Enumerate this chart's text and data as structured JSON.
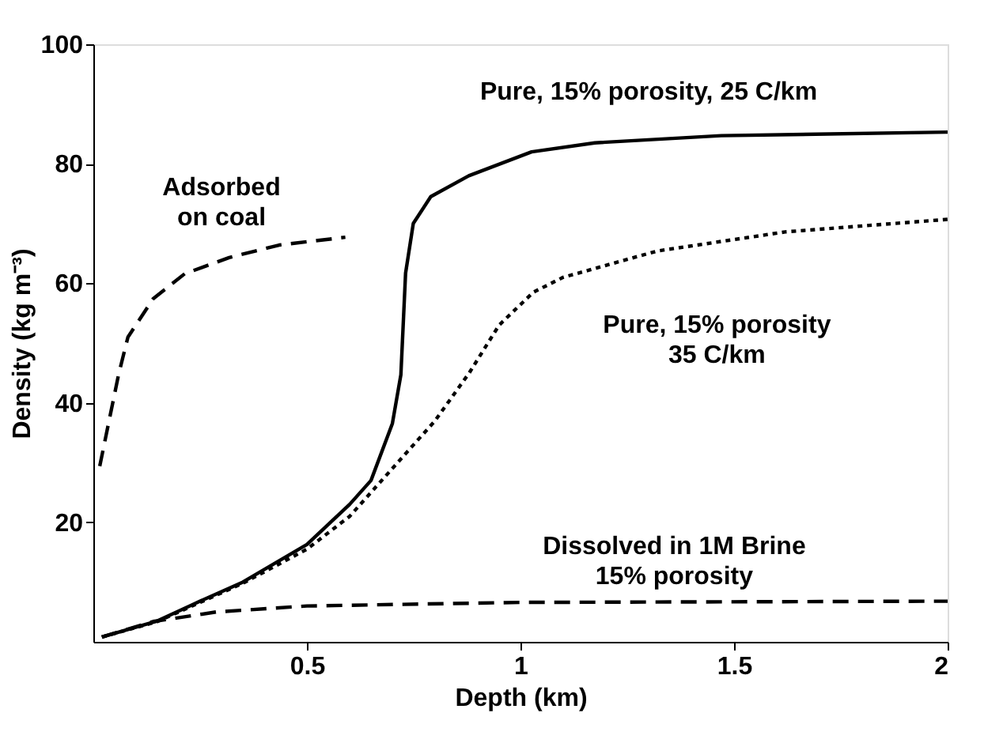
{
  "chart_data": {
    "type": "line",
    "xlabel": "Depth (km)",
    "ylabel": "Density (kg m⁻³)",
    "xlim": [
      0,
      2
    ],
    "ylim": [
      0,
      100
    ],
    "xticks": [
      0.5,
      1,
      1.5,
      2
    ],
    "yticks": [
      20,
      40,
      60,
      80,
      100
    ],
    "grid": false,
    "marker": "none",
    "series": [
      {
        "name": "Pure, 15% porosity, 25 C/km",
        "color": "#000000",
        "line_style": "solid",
        "x": [
          0.02,
          0.15,
          0.25,
          0.35,
          0.5,
          0.6,
          0.65,
          0.7,
          0.72,
          0.731,
          0.749,
          0.79,
          0.879,
          1.026,
          1.174,
          1.47,
          2.0
        ],
        "values": [
          0.8,
          3.5,
          6.8,
          10,
          16.3,
          23,
          27,
          36.5,
          44.7,
          61.7,
          70,
          74.5,
          78,
          82,
          83.5,
          84.7,
          85.3
        ]
      },
      {
        "name": "Pure, 15% porosity\n35 C/km",
        "color": "#000000",
        "line_style": "dotted",
        "x": [
          0.02,
          0.15,
          0.25,
          0.35,
          0.5,
          0.6,
          0.7,
          0.8,
          0.88,
          0.95,
          1.03,
          1.1,
          1.32,
          1.62,
          2.0
        ],
        "values": [
          0.8,
          3.4,
          6.6,
          9.8,
          15.5,
          21,
          29,
          37,
          45,
          53,
          58.5,
          61,
          65.4,
          68.6,
          70.7
        ]
      },
      {
        "name": "Adsorbed\non coal",
        "color": "#000000",
        "line_style": "dashed",
        "x": [
          0.015,
          0.059,
          0.081,
          0.14,
          0.214,
          0.318,
          0.435,
          0.59
        ],
        "values": [
          29.4,
          44.7,
          51,
          57.4,
          61.6,
          64.3,
          66.4,
          67.7
        ]
      },
      {
        "name": "Dissolved in 1M Brine\n15% porosity",
        "color": "#000000",
        "line_style": "dashed",
        "x": [
          0.02,
          0.14,
          0.288,
          0.5,
          1.0,
          2.0
        ],
        "values": [
          0.8,
          3.4,
          5,
          6,
          6.6,
          6.8
        ]
      }
    ]
  }
}
